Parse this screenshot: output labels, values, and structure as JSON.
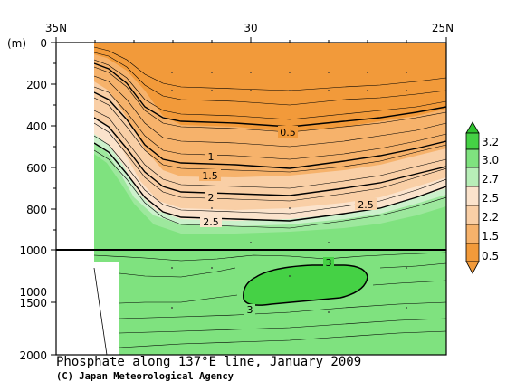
{
  "chart_data": {
    "type": "contour section",
    "title": "Phosphate along 137°E line, January 2009",
    "credit": "(C) Japan Meteorological Agency",
    "x_ticks": [
      "35N",
      "30",
      "25N"
    ],
    "x_tick_lat": [
      35,
      30,
      25
    ],
    "ylabel": "(m)",
    "y_upper_ticks": [
      0,
      200,
      400,
      600,
      800,
      1000
    ],
    "y_lower_ticks": [
      1500,
      2000
    ],
    "y_lower_tick_extra": [
      1000
    ],
    "y_break": 1000,
    "legend_levels": [
      "3.2",
      "3.0",
      "2.7",
      "2.5",
      "2.2",
      "1.5",
      "0.5"
    ],
    "colors": {
      "orange_top": "#f29a3a",
      "orange_mid": "#f6b26b",
      "peach": "#f9cfa6",
      "light_peach": "#fbe3cc",
      "mint": "#ccf1cc",
      "light_green": "#9de89d",
      "green": "#7fe27f",
      "green_high": "#45d145"
    },
    "contour_labels": [
      "0.5",
      "1",
      "1.5",
      "2",
      "2.5",
      "2.5",
      "3",
      "3"
    ]
  }
}
